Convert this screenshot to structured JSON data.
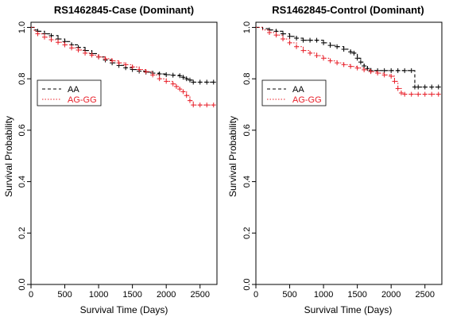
{
  "chart_data": [
    {
      "type": "line",
      "step": true,
      "title": "RS1462845-Case (Dominant)",
      "xlabel": "Survival Time (Days)",
      "ylabel": "Survival Probability",
      "xlim": [
        0,
        2750
      ],
      "ylim": [
        0,
        1.02
      ],
      "xticks": [
        0,
        500,
        1000,
        1500,
        2000,
        2500
      ],
      "yticks": [
        0.0,
        0.2,
        0.4,
        0.6,
        0.8,
        1.0
      ],
      "tick_labels_x": [
        "0",
        "500",
        "1000",
        "1500",
        "2000",
        "2500"
      ],
      "tick_labels_y": [
        "0.0",
        "0.2",
        "0.4",
        "0.6",
        "0.8",
        "1.0"
      ],
      "legend_position": "upper-left",
      "series": [
        {
          "name": "AA",
          "color": "#000000",
          "dash": "dashed",
          "x": [
            0,
            50,
            100,
            200,
            300,
            400,
            500,
            600,
            700,
            800,
            900,
            1000,
            1100,
            1200,
            1300,
            1400,
            1500,
            1600,
            1700,
            1800,
            1900,
            2000,
            2100,
            2200,
            2250,
            2300,
            2350,
            2400,
            2500,
            2600,
            2700
          ],
          "y": [
            1.0,
            0.99,
            0.985,
            0.975,
            0.968,
            0.955,
            0.945,
            0.932,
            0.922,
            0.91,
            0.898,
            0.885,
            0.873,
            0.862,
            0.852,
            0.843,
            0.836,
            0.83,
            0.826,
            0.822,
            0.819,
            0.816,
            0.814,
            0.812,
            0.806,
            0.8,
            0.795,
            0.787,
            0.787,
            0.787,
            0.787
          ]
        },
        {
          "name": "AG-GG",
          "color": "#e8202a",
          "dash": "dotted",
          "x": [
            0,
            50,
            100,
            200,
            300,
            400,
            500,
            600,
            700,
            800,
            900,
            1000,
            1100,
            1200,
            1300,
            1400,
            1500,
            1600,
            1700,
            1800,
            1900,
            2000,
            2100,
            2150,
            2200,
            2250,
            2300,
            2350,
            2400,
            2500,
            2600,
            2700
          ],
          "y": [
            1.0,
            0.985,
            0.975,
            0.962,
            0.952,
            0.942,
            0.932,
            0.92,
            0.912,
            0.9,
            0.892,
            0.885,
            0.878,
            0.87,
            0.862,
            0.855,
            0.846,
            0.836,
            0.828,
            0.815,
            0.8,
            0.79,
            0.78,
            0.77,
            0.76,
            0.75,
            0.735,
            0.715,
            0.698,
            0.698,
            0.698,
            0.698
          ]
        }
      ]
    },
    {
      "type": "line",
      "step": true,
      "title": "RS1462845-Control (Dominant)",
      "xlabel": "Survival Time (Days)",
      "ylabel": "Survival Probability",
      "xlim": [
        0,
        2750
      ],
      "ylim": [
        0,
        1.02
      ],
      "xticks": [
        0,
        500,
        1000,
        1500,
        2000,
        2500
      ],
      "yticks": [
        0.0,
        0.2,
        0.4,
        0.6,
        0.8,
        1.0
      ],
      "tick_labels_x": [
        "0",
        "500",
        "1000",
        "1500",
        "2000",
        "2500"
      ],
      "tick_labels_y": [
        "0.0",
        "0.2",
        "0.4",
        "0.6",
        "0.8",
        "1.0"
      ],
      "legend_position": "upper-left",
      "series": [
        {
          "name": "AA",
          "color": "#000000",
          "dash": "dashed",
          "x": [
            0,
            100,
            200,
            300,
            400,
            500,
            600,
            700,
            800,
            900,
            1000,
            1100,
            1200,
            1300,
            1400,
            1450,
            1500,
            1550,
            1600,
            1650,
            1700,
            1800,
            1900,
            2000,
            2100,
            2200,
            2300,
            2350,
            2400,
            2500,
            2600,
            2700
          ],
          "y": [
            1.0,
            0.995,
            0.99,
            0.985,
            0.975,
            0.965,
            0.958,
            0.95,
            0.95,
            0.95,
            0.94,
            0.93,
            0.925,
            0.915,
            0.905,
            0.9,
            0.88,
            0.865,
            0.85,
            0.84,
            0.832,
            0.832,
            0.832,
            0.832,
            0.832,
            0.832,
            0.832,
            0.768,
            0.768,
            0.768,
            0.768,
            0.768
          ]
        },
        {
          "name": "AG-GG",
          "color": "#e8202a",
          "dash": "dotted",
          "x": [
            0,
            100,
            200,
            300,
            400,
            500,
            600,
            700,
            800,
            900,
            1000,
            1100,
            1200,
            1300,
            1400,
            1500,
            1600,
            1700,
            1800,
            1900,
            2000,
            2050,
            2100,
            2150,
            2200,
            2300,
            2400,
            2500,
            2600,
            2700
          ],
          "y": [
            1.0,
            0.99,
            0.98,
            0.97,
            0.955,
            0.94,
            0.925,
            0.91,
            0.9,
            0.89,
            0.88,
            0.87,
            0.862,
            0.855,
            0.848,
            0.842,
            0.835,
            0.828,
            0.822,
            0.815,
            0.81,
            0.79,
            0.762,
            0.745,
            0.74,
            0.74,
            0.74,
            0.74,
            0.74,
            0.74
          ]
        }
      ]
    }
  ]
}
